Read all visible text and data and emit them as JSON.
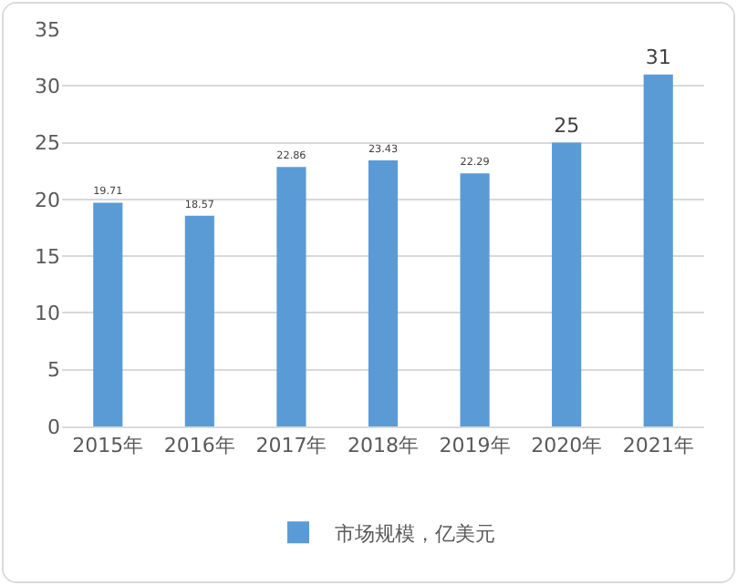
{
  "chart_data": {
    "type": "bar",
    "categories": [
      "2015年",
      "2016年",
      "2017年",
      "2018年",
      "2019年",
      "2020年",
      "2021年"
    ],
    "series": [
      {
        "name": "市场规模，亿美元",
        "color": "#5b9bd5",
        "values": [
          19.71,
          18.57,
          22.86,
          23.43,
          22.29,
          25,
          31
        ]
      }
    ],
    "ylim": [
      0,
      35
    ],
    "yticks": [
      0,
      5,
      10,
      15,
      20,
      25,
      30,
      35
    ],
    "grid": "y",
    "legend": "bottom",
    "data_labels": true
  }
}
